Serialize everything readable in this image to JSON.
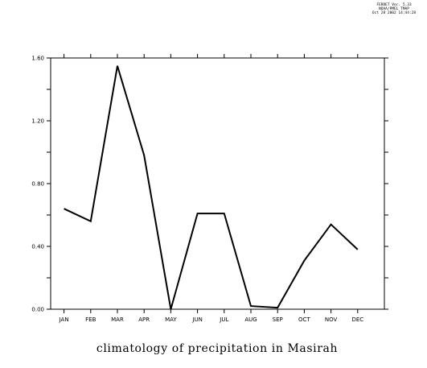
{
  "header_stamp": {
    "line1": "FERRET Ver. 5.33",
    "line2": "NOAA/PMEL TMAP",
    "line3": "Oct 28 2002 14:44:28"
  },
  "chart_data": {
    "type": "line",
    "title": "climatology of precipitation in Masirah",
    "xlabel": "",
    "ylabel": "",
    "categories": [
      "JAN",
      "FEB",
      "MAR",
      "APR",
      "MAY",
      "JUN",
      "JUL",
      "AUG",
      "SEP",
      "OCT",
      "NOV",
      "DEC"
    ],
    "values": [
      0.64,
      0.56,
      1.55,
      0.98,
      0.0,
      0.61,
      0.61,
      0.02,
      0.01,
      0.31,
      0.54,
      0.38
    ],
    "ylim": [
      0,
      1.6
    ],
    "y_tick_labels": [
      "0.00",
      "0.40",
      "0.80",
      "1.20",
      "1.60"
    ],
    "y_tick_values": [
      0.0,
      0.4,
      0.8,
      1.2,
      1.6
    ],
    "y_minor_step": 0.2,
    "grid": false,
    "line_color": "#000000"
  }
}
